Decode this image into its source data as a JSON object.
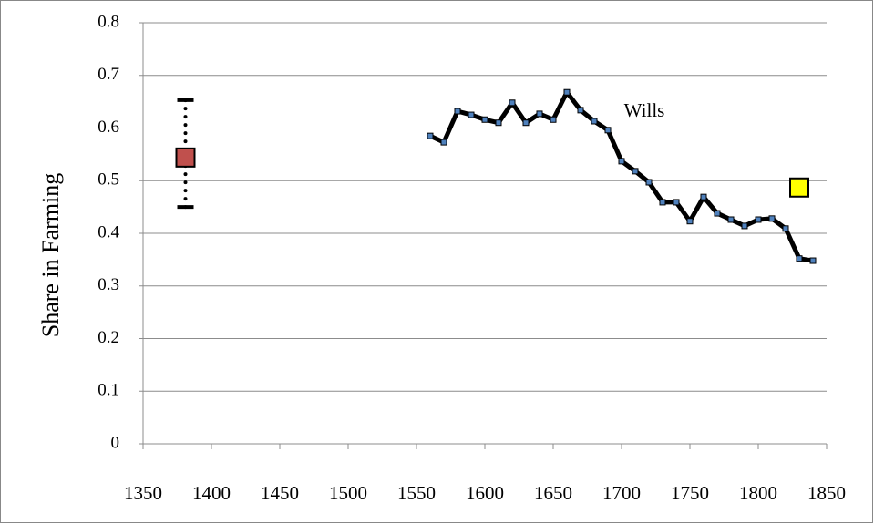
{
  "chart_data": {
    "type": "line",
    "y_label": "Share in Farming",
    "xlim": [
      1350,
      1850
    ],
    "xticks": [
      1350,
      1400,
      1450,
      1500,
      1550,
      1600,
      1650,
      1700,
      1750,
      1800,
      1850
    ],
    "ylim": [
      0,
      0.8
    ],
    "yticks": [
      0,
      0.1,
      0.2,
      0.3,
      0.4,
      0.5,
      0.6,
      0.7,
      0.8
    ],
    "grid": true,
    "series": [
      {
        "name": "Wills",
        "color": "#000000",
        "marker_color": "#4f81bd",
        "x": [
          1560,
          1570,
          1580,
          1590,
          1600,
          1610,
          1620,
          1630,
          1640,
          1650,
          1660,
          1670,
          1680,
          1690,
          1700,
          1710,
          1720,
          1730,
          1740,
          1750,
          1760,
          1770,
          1780,
          1790,
          1800,
          1810,
          1820,
          1830,
          1840
        ],
        "values": [
          0.585,
          0.573,
          0.632,
          0.625,
          0.616,
          0.61,
          0.648,
          0.61,
          0.627,
          0.616,
          0.668,
          0.634,
          0.613,
          0.596,
          0.537,
          0.518,
          0.497,
          0.459,
          0.459,
          0.423,
          0.469,
          0.438,
          0.426,
          0.414,
          0.426,
          0.428,
          0.409,
          0.352,
          0.348
        ]
      },
      {
        "color": "#c0504d",
        "x": [
          1381
        ],
        "values": [
          0.544
        ],
        "low": [
          0.45
        ],
        "high": [
          0.653
        ]
      },
      {
        "color": "#ffff00",
        "x": [
          1830
        ],
        "values": [
          0.487
        ]
      }
    ]
  }
}
